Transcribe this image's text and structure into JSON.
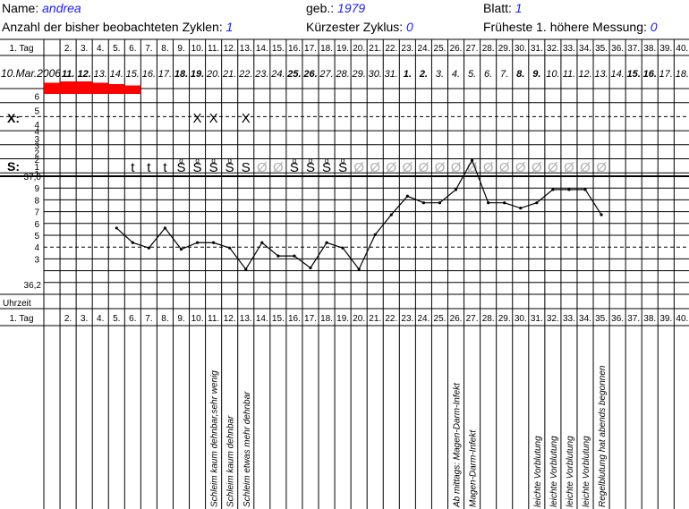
{
  "header": {
    "name_label": "Name:",
    "name_value": "andrea",
    "born_label": "geb.:",
    "born_value": "1979",
    "sheet_label": "Blatt:",
    "sheet_value": "1",
    "cycles_label": "Anzahl der bisher beobachteten Zyklen:",
    "cycles_value": "1",
    "shortest_label": "Kürzester Zyklus:",
    "shortest_value": "0",
    "earliest_label": "Früheste 1. höhere Messung:",
    "earliest_value": "0"
  },
  "row_labels": {
    "day": "1. Tag",
    "x_label": "X:",
    "s_label": "S:",
    "temp_top": "37,0",
    "temp_bottom": "36,2",
    "time": "Uhrzeit",
    "day_bottom": "1. Tag"
  },
  "bleeding_ticks": [
    "6",
    "5",
    "4",
    "3",
    "2",
    "1"
  ],
  "mucus_ticks": [
    "4",
    "3",
    "2",
    "1"
  ],
  "temp_ticks": [
    "9",
    "8",
    "7",
    "6",
    "5",
    "4",
    "3"
  ],
  "days": [
    "1. Tag",
    "2.",
    "3.",
    "4.",
    "5.",
    "6.",
    "7.",
    "8.",
    "9.",
    "10.",
    "11.",
    "12.",
    "13.",
    "14.",
    "15.",
    "16.",
    "17.",
    "18.",
    "19.",
    "20.",
    "21.",
    "22.",
    "23.",
    "24.",
    "25.",
    "26.",
    "27.",
    "28.",
    "29.",
    "30.",
    "31.",
    "32.",
    "33.",
    "34.",
    "35.",
    "36.",
    "37.",
    "38.",
    "39.",
    "40."
  ],
  "dates": [
    {
      "t": "10.Mar.2006",
      "b": false
    },
    {
      "t": "11.",
      "b": true
    },
    {
      "t": "12.",
      "b": true
    },
    {
      "t": "13.",
      "b": false
    },
    {
      "t": "14.",
      "b": false
    },
    {
      "t": "15.",
      "b": false
    },
    {
      "t": "16.",
      "b": false
    },
    {
      "t": "17.",
      "b": false
    },
    {
      "t": "18.",
      "b": true
    },
    {
      "t": "19.",
      "b": true
    },
    {
      "t": "20.",
      "b": false
    },
    {
      "t": "21.",
      "b": false
    },
    {
      "t": "22.",
      "b": false
    },
    {
      "t": "23.",
      "b": false
    },
    {
      "t": "24.",
      "b": false
    },
    {
      "t": "25.",
      "b": true
    },
    {
      "t": "26.",
      "b": true
    },
    {
      "t": "27.",
      "b": false
    },
    {
      "t": "28.",
      "b": false
    },
    {
      "t": "29.",
      "b": false
    },
    {
      "t": "30.",
      "b": false
    },
    {
      "t": "31.",
      "b": false
    },
    {
      "t": "1.",
      "b": true
    },
    {
      "t": "2.",
      "b": true
    },
    {
      "t": "3.",
      "b": false
    },
    {
      "t": "4.",
      "b": false
    },
    {
      "t": "5.",
      "b": false
    },
    {
      "t": "6.",
      "b": false
    },
    {
      "t": "7.",
      "b": false
    },
    {
      "t": "8.",
      "b": true
    },
    {
      "t": "9.",
      "b": true
    },
    {
      "t": "10.",
      "b": false
    },
    {
      "t": "11.",
      "b": false
    },
    {
      "t": "12.",
      "b": false
    },
    {
      "t": "13.",
      "b": false
    },
    {
      "t": "14.",
      "b": false
    },
    {
      "t": "15.",
      "b": true
    },
    {
      "t": "16.",
      "b": true
    },
    {
      "t": "17.",
      "b": false
    },
    {
      "t": "18.",
      "b": false
    }
  ],
  "chart_data": {
    "type": "line",
    "ylabel_top": "37,0",
    "ylabel_bottom": "36,2",
    "ylim": [
      36.2,
      37.0
    ],
    "temperature": [
      {
        "day": 5,
        "value": 36.61
      },
      {
        "day": 6,
        "value": 36.5
      },
      {
        "day": 7,
        "value": 36.46
      },
      {
        "day": 8,
        "value": 36.61
      },
      {
        "day": 9,
        "value": 36.45
      },
      {
        "day": 10,
        "value": 36.5
      },
      {
        "day": 11,
        "value": 36.5
      },
      {
        "day": 12,
        "value": 36.46
      },
      {
        "day": 13,
        "value": 36.3
      },
      {
        "day": 14,
        "value": 36.5
      },
      {
        "day": 15,
        "value": 36.4
      },
      {
        "day": 16,
        "value": 36.4
      },
      {
        "day": 17,
        "value": 36.31
      },
      {
        "day": 18,
        "value": 36.5
      },
      {
        "day": 19,
        "value": 36.46
      },
      {
        "day": 20,
        "value": 36.3
      },
      {
        "day": 21,
        "value": 36.56
      },
      {
        "day": 22,
        "value": 36.71
      },
      {
        "day": 23,
        "value": 36.85
      },
      {
        "day": 24,
        "value": 36.8
      },
      {
        "day": 25,
        "value": 36.8
      },
      {
        "day": 26,
        "value": 36.9
      },
      {
        "day": 27,
        "value": 37.12
      },
      {
        "day": 28,
        "value": 36.8
      },
      {
        "day": 29,
        "value": 36.8
      },
      {
        "day": 30,
        "value": 36.76
      },
      {
        "day": 31,
        "value": 36.8
      },
      {
        "day": 32,
        "value": 36.9
      },
      {
        "day": 33,
        "value": 36.9
      },
      {
        "day": 34,
        "value": 36.9
      },
      {
        "day": 35,
        "value": 36.71
      }
    ],
    "bleeding": [
      {
        "day": 1,
        "level": 1.5
      },
      {
        "day": 2,
        "level": 2
      },
      {
        "day": 3,
        "level": 2
      },
      {
        "day": 4,
        "level": 1.5
      },
      {
        "day": 5,
        "level": 1
      },
      {
        "day": 6,
        "level": 0.5
      }
    ],
    "x_marks": [
      {
        "day": 10,
        "text": "X"
      },
      {
        "day": 11,
        "text": "X"
      },
      {
        "day": 13,
        "text": "X"
      }
    ],
    "mucus": [
      {
        "day": 6,
        "text": "t",
        "sup": ""
      },
      {
        "day": 7,
        "text": "t",
        "sup": ""
      },
      {
        "day": 8,
        "text": "t",
        "sup": ""
      },
      {
        "day": 9,
        "text": "S",
        "sup": "g"
      },
      {
        "day": 10,
        "text": "S",
        "sup": "g"
      },
      {
        "day": 11,
        "text": "S",
        "sup": "g"
      },
      {
        "day": 12,
        "text": "S",
        "sup": "g"
      },
      {
        "day": 13,
        "text": "S",
        "sup": ""
      },
      {
        "day": 14,
        "text": "Ø",
        "sup": "",
        "gray": true
      },
      {
        "day": 15,
        "text": "Ø",
        "sup": "",
        "gray": true
      },
      {
        "day": 16,
        "text": "S",
        "sup": "g"
      },
      {
        "day": 17,
        "text": "S",
        "sup": "g"
      },
      {
        "day": 18,
        "text": "S",
        "sup": "g"
      },
      {
        "day": 19,
        "text": "S",
        "sup": "g"
      },
      {
        "day": 20,
        "text": "Ø",
        "sup": "",
        "gray": true
      },
      {
        "day": 21,
        "text": "Ø",
        "sup": "",
        "gray": true
      },
      {
        "day": 22,
        "text": "Ø",
        "sup": "",
        "gray": true
      },
      {
        "day": 23,
        "text": "Ø",
        "sup": "",
        "gray": true
      },
      {
        "day": 24,
        "text": "Ø",
        "sup": "",
        "gray": true
      },
      {
        "day": 25,
        "text": "Ø",
        "sup": "",
        "gray": true
      },
      {
        "day": 26,
        "text": "Ø",
        "sup": "",
        "gray": true
      },
      {
        "day": 27,
        "text": "Ø",
        "sup": "",
        "gray": true
      },
      {
        "day": 28,
        "text": "Ø",
        "sup": "",
        "gray": true
      },
      {
        "day": 29,
        "text": "Ø",
        "sup": "",
        "gray": true
      },
      {
        "day": 30,
        "text": "Ø",
        "sup": "",
        "gray": true
      },
      {
        "day": 31,
        "text": "Ø",
        "sup": "",
        "gray": true
      },
      {
        "day": 32,
        "text": "Ø",
        "sup": "",
        "gray": true
      },
      {
        "day": 33,
        "text": "Ø",
        "sup": "",
        "gray": true
      },
      {
        "day": 34,
        "text": "Ø",
        "sup": "",
        "gray": true
      },
      {
        "day": 35,
        "text": "Ø",
        "sup": "",
        "gray": true
      }
    ],
    "notes": [
      {
        "day": 11,
        "text": "Schleim kaum dehnbar,sehr wenig"
      },
      {
        "day": 12,
        "text": "Schleim kaum dehnbar"
      },
      {
        "day": 13,
        "text": "Schleim etwas mehr dehnbar"
      },
      {
        "day": 26,
        "text": "Ab mittags: Magen-Darm-Infekt"
      },
      {
        "day": 27,
        "text": "Magen-Darm-Infekt"
      },
      {
        "day": 31,
        "text": "leichte Vorblutung"
      },
      {
        "day": 32,
        "text": "leichte Vorblutung"
      },
      {
        "day": 33,
        "text": "leichte Vorblutung"
      },
      {
        "day": 34,
        "text": "leichte Vorblutung"
      },
      {
        "day": 35,
        "text": "Regelblutung hat abends begonnen"
      }
    ]
  },
  "colors": {
    "blue": "#1a1aff",
    "bleeding": "#ff0000",
    "grid": "#000000",
    "gray_symbol": "#b0b0b0"
  }
}
